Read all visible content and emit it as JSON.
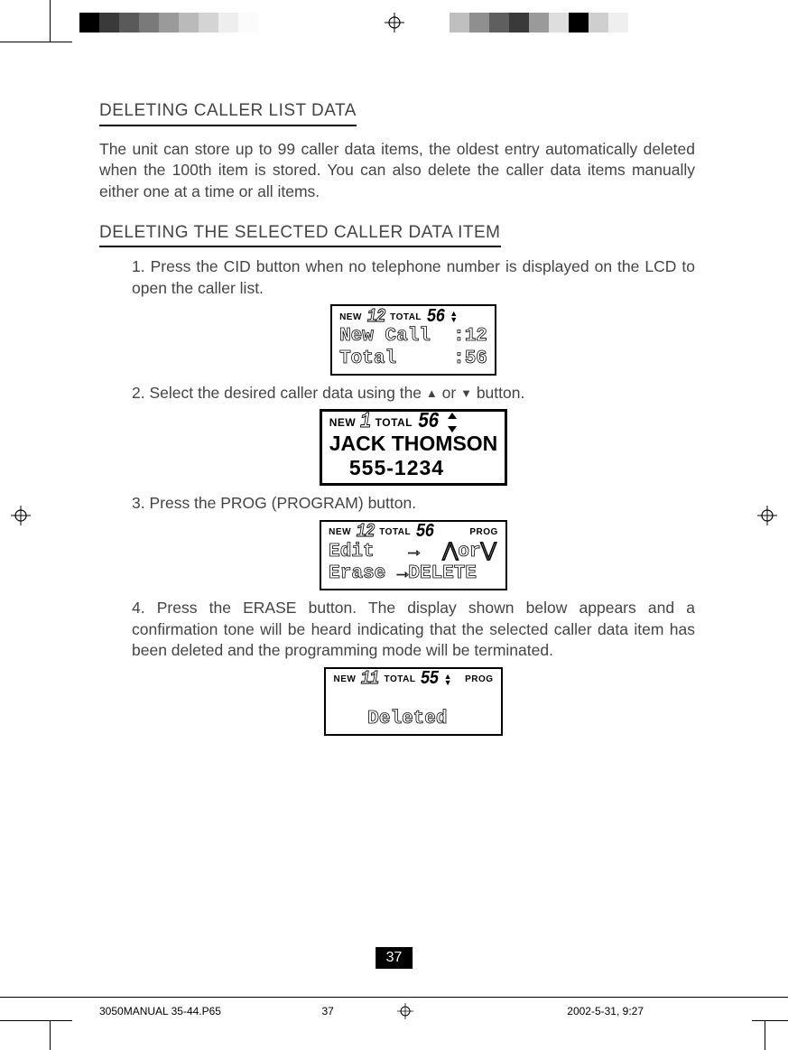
{
  "registration_strip_left_colors": [
    "#000000",
    "#3a3a3a",
    "#5a5a5a",
    "#7a7a7a",
    "#9a9a9a",
    "#bababa",
    "#d4d4d4",
    "#eeeeee",
    "#fbfbfb",
    "#ffffff",
    "#ffffff",
    "#ffffff",
    "#ffffff",
    "#ffffff"
  ],
  "registration_strip_right_colors": [
    "#ffffff",
    "#bfbfbf",
    "#8f8f8f",
    "#5f5f5f",
    "#3a3a3a",
    "#9a9a9a",
    "#dedede",
    "#000000",
    "#cfcfcf",
    "#efefef",
    "#ffffff"
  ],
  "title": "DELETING CALLER LIST DATA",
  "intro": "The unit can store up to 99 caller data items, the oldest entry automatically deleted when the 100th item is stored. You can also delete the caller data items manually either one at a time or all items.",
  "subtitle": "DELETING THE SELECTED CALLER DATA ITEM",
  "steps": {
    "s1": "1. Press the CID button when no telephone number is displayed on the LCD to open the caller list.",
    "s2_pre": "2. Select the desired caller data using the ",
    "s2_mid": " or ",
    "s2_post": " button.",
    "s3": "3. Press the PROG (PROGRAM) button.",
    "s4": "4. Press the ERASE button. The display shown below appears and a confirmation tone will be heard indicating that the selected caller data item has been deleted and the programming mode will be terminated."
  },
  "lcd1": {
    "top_new": "NEW",
    "top_new_val": "12",
    "top_total": "TOTAL",
    "top_total_val": "56",
    "line1": "New Call  :12",
    "line2": "Total     :56"
  },
  "lcd2": {
    "top_new": "NEW",
    "top_new_val": "1",
    "top_total": "TOTAL",
    "top_total_val": "56",
    "line1": "JACK THOMSON",
    "line2": "   555-1234"
  },
  "lcd3": {
    "top_new": "NEW",
    "top_new_val": "12",
    "top_total": "TOTAL",
    "top_total_val": "56",
    "top_prog": "PROG",
    "line1": "Edit   →  ⋀or⋁",
    "line2": "Erase →DELETE"
  },
  "lcd4": {
    "top_new": "NEW",
    "top_new_val": "11",
    "top_total": "TOTAL",
    "top_total_val": "55",
    "top_prog": "PROG",
    "line1": "",
    "line2": "   Deleted"
  },
  "page_number": "37",
  "footer": {
    "file": "3050MANUAL 35-44.P65",
    "page": "37",
    "timestamp": "2002-5-31, 9:27"
  }
}
